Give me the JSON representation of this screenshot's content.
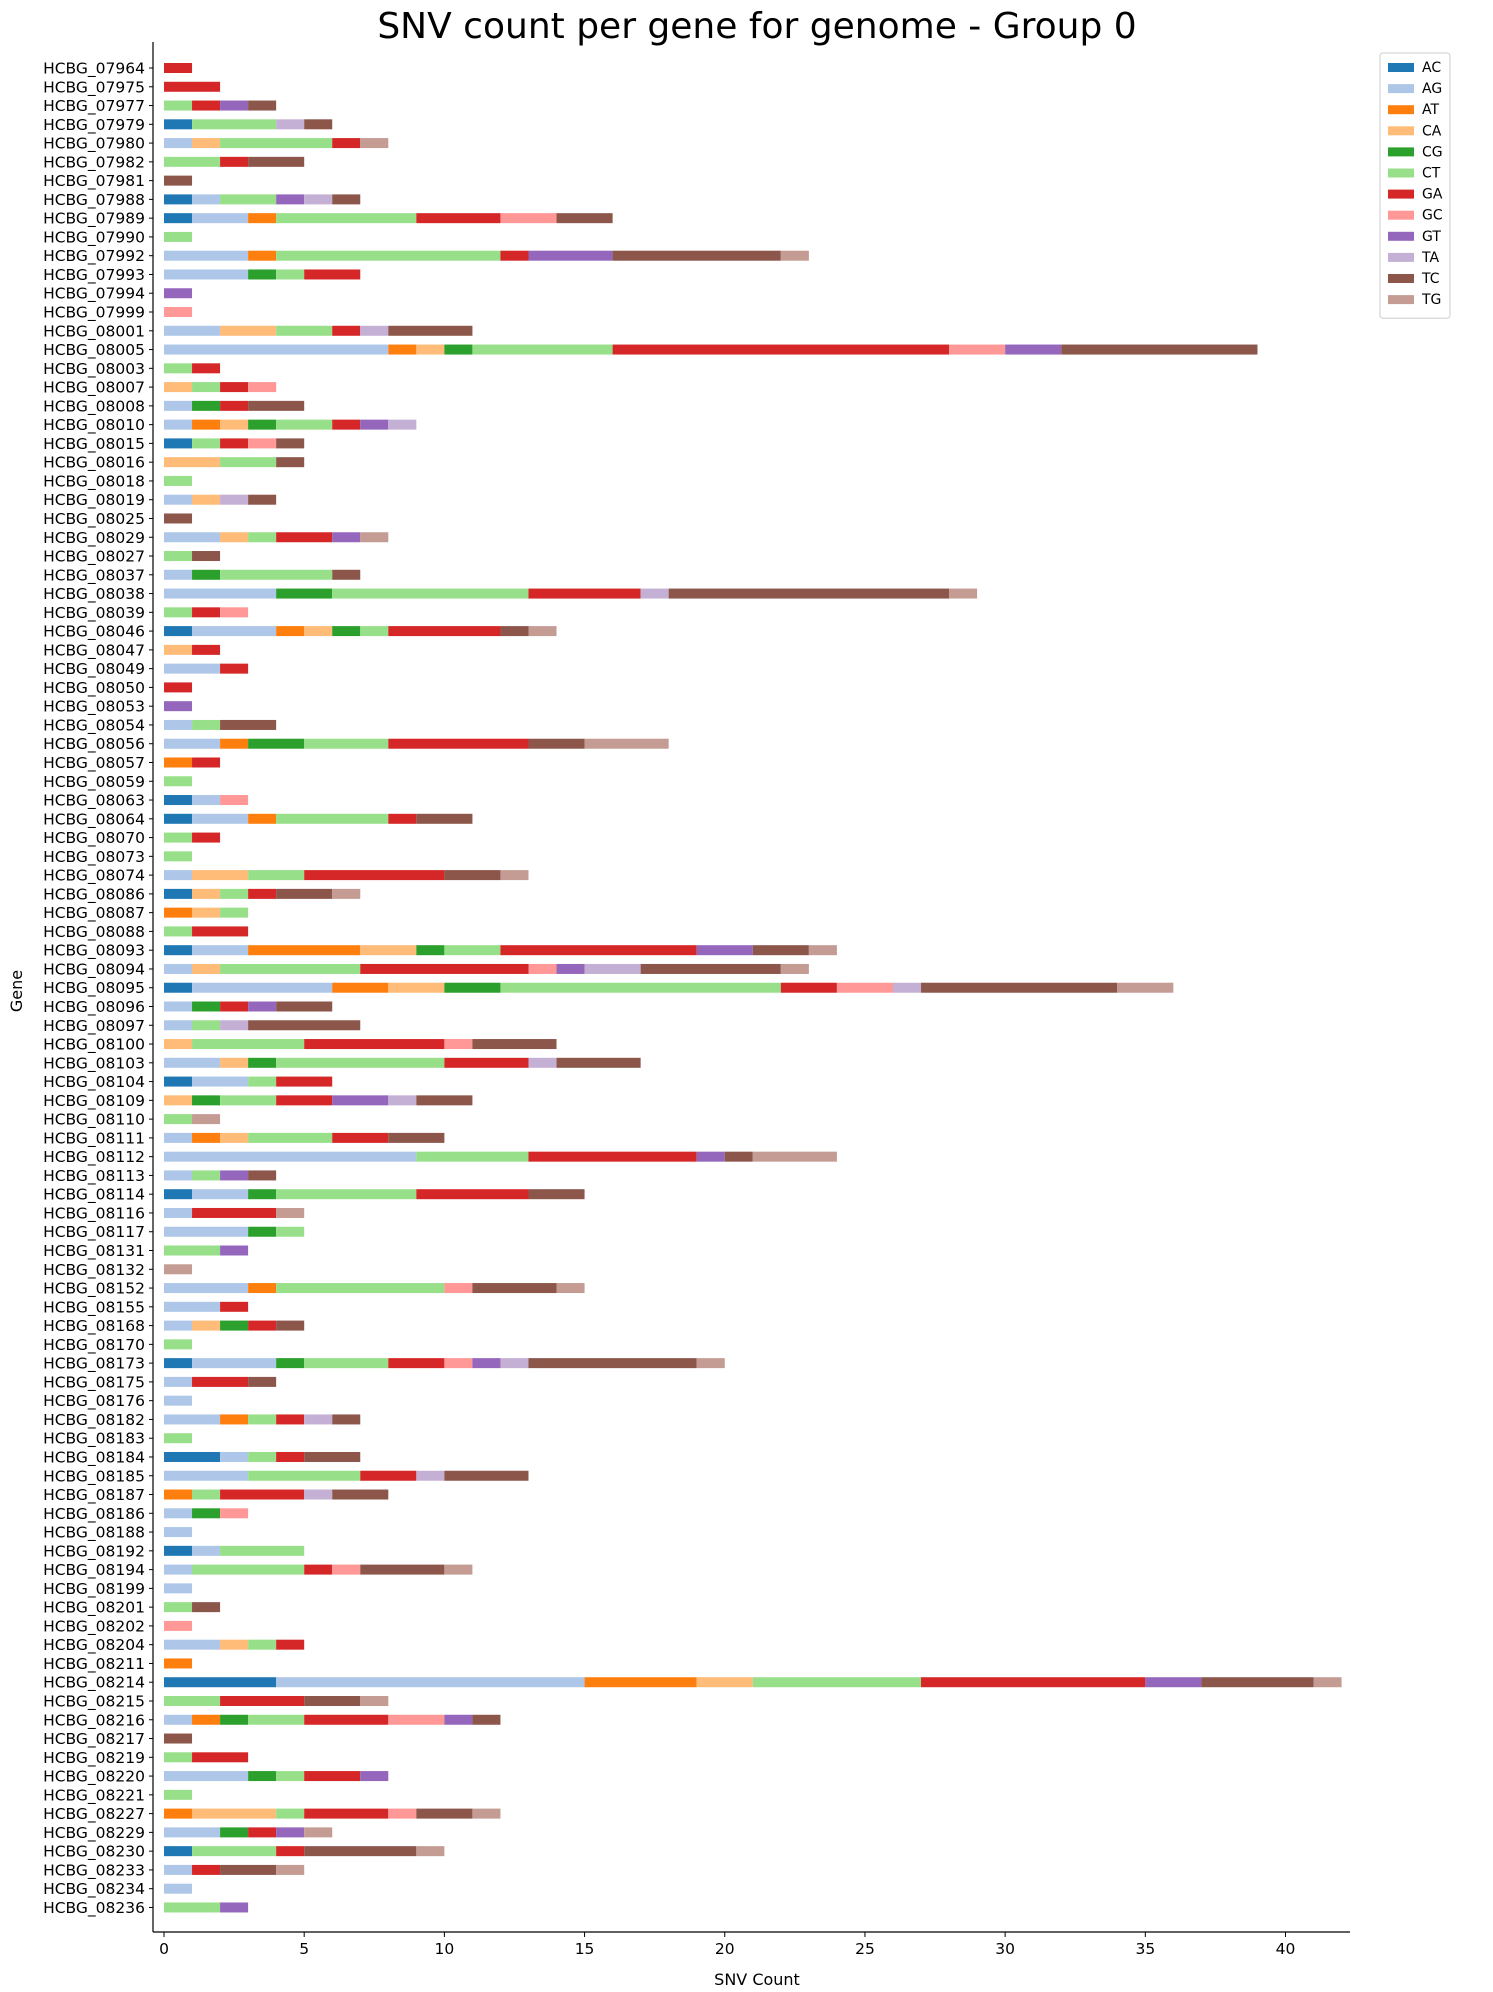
{
  "chart_data": {
    "type": "bar",
    "orientation": "horizontal",
    "stacked": true,
    "title": "SNV count per gene for genome - Group 0",
    "xlabel": "SNV Count",
    "ylabel": "Gene",
    "xlim": [
      0,
      42.3
    ],
    "xticks": [
      0,
      5,
      10,
      15,
      20,
      25,
      30,
      35,
      40
    ],
    "grid": false,
    "legend_position": "top-right outside",
    "legend": [
      {
        "name": "AC",
        "color": "#1f77b4"
      },
      {
        "name": "AG",
        "color": "#aec7e8"
      },
      {
        "name": "AT",
        "color": "#ff7f0e"
      },
      {
        "name": "CA",
        "color": "#ffbb78"
      },
      {
        "name": "CG",
        "color": "#2ca02c"
      },
      {
        "name": "CT",
        "color": "#98df8a"
      },
      {
        "name": "GA",
        "color": "#d62728"
      },
      {
        "name": "GC",
        "color": "#ff9896"
      },
      {
        "name": "GT",
        "color": "#9467bd"
      },
      {
        "name": "TA",
        "color": "#c5b0d5"
      },
      {
        "name": "TC",
        "color": "#8c564b"
      },
      {
        "name": "TG",
        "color": "#c49c94"
      }
    ],
    "genes": [
      {
        "gene": "HCBG_07964",
        "counts": {
          "GA": 1
        }
      },
      {
        "gene": "HCBG_07975",
        "counts": {
          "GA": 2
        }
      },
      {
        "gene": "HCBG_07977",
        "counts": {
          "CT": 1,
          "GA": 1,
          "GT": 1,
          "TC": 1
        }
      },
      {
        "gene": "HCBG_07979",
        "counts": {
          "AC": 1,
          "CT": 3,
          "TA": 1,
          "TC": 1
        }
      },
      {
        "gene": "HCBG_07980",
        "counts": {
          "AG": 1,
          "CA": 1,
          "CT": 4,
          "GA": 1,
          "TG": 1
        }
      },
      {
        "gene": "HCBG_07982",
        "counts": {
          "CT": 2,
          "GA": 1,
          "TC": 2
        }
      },
      {
        "gene": "HCBG_07981",
        "counts": {
          "TC": 1
        }
      },
      {
        "gene": "HCBG_07988",
        "counts": {
          "AC": 1,
          "AG": 1,
          "CT": 2,
          "GT": 1,
          "TA": 1,
          "TC": 1
        }
      },
      {
        "gene": "HCBG_07989",
        "counts": {
          "AC": 1,
          "AG": 2,
          "AT": 1,
          "CT": 5,
          "GA": 3,
          "GC": 2,
          "TC": 2
        }
      },
      {
        "gene": "HCBG_07990",
        "counts": {
          "CT": 1
        }
      },
      {
        "gene": "HCBG_07992",
        "counts": {
          "AG": 3,
          "AT": 1,
          "CT": 8,
          "GA": 1,
          "GT": 3,
          "TC": 6,
          "TG": 1
        }
      },
      {
        "gene": "HCBG_07993",
        "counts": {
          "AG": 3,
          "CG": 1,
          "CT": 1,
          "GA": 2
        }
      },
      {
        "gene": "HCBG_07994",
        "counts": {
          "GT": 1
        }
      },
      {
        "gene": "HCBG_07999",
        "counts": {
          "GC": 1
        }
      },
      {
        "gene": "HCBG_08001",
        "counts": {
          "AG": 2,
          "CA": 2,
          "CT": 2,
          "GA": 1,
          "TA": 1,
          "TC": 3
        }
      },
      {
        "gene": "HCBG_08005",
        "counts": {
          "AG": 8,
          "AT": 1,
          "CA": 1,
          "CG": 1,
          "CT": 5,
          "GA": 12,
          "GC": 2,
          "GT": 2,
          "TC": 7
        }
      },
      {
        "gene": "HCBG_08003",
        "counts": {
          "CT": 1,
          "GA": 1
        }
      },
      {
        "gene": "HCBG_08007",
        "counts": {
          "CA": 1,
          "CT": 1,
          "GA": 1,
          "GC": 1
        }
      },
      {
        "gene": "HCBG_08008",
        "counts": {
          "AG": 1,
          "CG": 1,
          "GA": 1,
          "TC": 2
        }
      },
      {
        "gene": "HCBG_08010",
        "counts": {
          "AG": 1,
          "AT": 1,
          "CA": 1,
          "CG": 1,
          "CT": 2,
          "GA": 1,
          "GT": 1,
          "TA": 1
        }
      },
      {
        "gene": "HCBG_08015",
        "counts": {
          "AC": 1,
          "CT": 1,
          "GA": 1,
          "GC": 1,
          "TC": 1
        }
      },
      {
        "gene": "HCBG_08016",
        "counts": {
          "CA": 2,
          "CT": 2,
          "TC": 1
        }
      },
      {
        "gene": "HCBG_08018",
        "counts": {
          "CT": 1
        }
      },
      {
        "gene": "HCBG_08019",
        "counts": {
          "AG": 1,
          "CA": 1,
          "TA": 1,
          "TC": 1
        }
      },
      {
        "gene": "HCBG_08025",
        "counts": {
          "TC": 1
        }
      },
      {
        "gene": "HCBG_08029",
        "counts": {
          "AG": 2,
          "CA": 1,
          "CT": 1,
          "GA": 2,
          "GT": 1,
          "TG": 1
        }
      },
      {
        "gene": "HCBG_08027",
        "counts": {
          "CT": 1,
          "TC": 1
        }
      },
      {
        "gene": "HCBG_08037",
        "counts": {
          "AG": 1,
          "CG": 1,
          "CT": 4,
          "TC": 1
        }
      },
      {
        "gene": "HCBG_08038",
        "counts": {
          "AG": 4,
          "CG": 2,
          "CT": 7,
          "GA": 4,
          "TA": 1,
          "TC": 10,
          "TG": 1
        }
      },
      {
        "gene": "HCBG_08039",
        "counts": {
          "CT": 1,
          "GA": 1,
          "GC": 1
        }
      },
      {
        "gene": "HCBG_08046",
        "counts": {
          "AC": 1,
          "AG": 3,
          "AT": 1,
          "CA": 1,
          "CG": 1,
          "CT": 1,
          "GA": 4,
          "TC": 1,
          "TG": 1
        }
      },
      {
        "gene": "HCBG_08047",
        "counts": {
          "CA": 1,
          "GA": 1
        }
      },
      {
        "gene": "HCBG_08049",
        "counts": {
          "AG": 2,
          "GA": 1
        }
      },
      {
        "gene": "HCBG_08050",
        "counts": {
          "GA": 1
        }
      },
      {
        "gene": "HCBG_08053",
        "counts": {
          "GT": 1
        }
      },
      {
        "gene": "HCBG_08054",
        "counts": {
          "AG": 1,
          "CT": 1,
          "TC": 2
        }
      },
      {
        "gene": "HCBG_08056",
        "counts": {
          "AG": 2,
          "AT": 1,
          "CG": 2,
          "CT": 3,
          "GA": 5,
          "TC": 2,
          "TG": 3
        }
      },
      {
        "gene": "HCBG_08057",
        "counts": {
          "AT": 1,
          "GA": 1
        }
      },
      {
        "gene": "HCBG_08059",
        "counts": {
          "CT": 1
        }
      },
      {
        "gene": "HCBG_08063",
        "counts": {
          "AC": 1,
          "AG": 1,
          "GC": 1
        }
      },
      {
        "gene": "HCBG_08064",
        "counts": {
          "AC": 1,
          "AG": 2,
          "AT": 1,
          "CT": 4,
          "GA": 1,
          "TC": 2
        }
      },
      {
        "gene": "HCBG_08070",
        "counts": {
          "CT": 1,
          "GA": 1
        }
      },
      {
        "gene": "HCBG_08073",
        "counts": {
          "CT": 1
        }
      },
      {
        "gene": "HCBG_08074",
        "counts": {
          "AG": 1,
          "CA": 2,
          "CT": 2,
          "GA": 5,
          "TC": 2,
          "TG": 1
        }
      },
      {
        "gene": "HCBG_08086",
        "counts": {
          "AC": 1,
          "CA": 1,
          "CT": 1,
          "GA": 1,
          "TC": 2,
          "TG": 1
        }
      },
      {
        "gene": "HCBG_08087",
        "counts": {
          "AT": 1,
          "CA": 1,
          "CT": 1
        }
      },
      {
        "gene": "HCBG_08088",
        "counts": {
          "CT": 1,
          "GA": 2
        }
      },
      {
        "gene": "HCBG_08093",
        "counts": {
          "AC": 1,
          "AG": 2,
          "AT": 4,
          "CA": 2,
          "CG": 1,
          "CT": 2,
          "GA": 7,
          "GT": 2,
          "TC": 2,
          "TG": 1
        }
      },
      {
        "gene": "HCBG_08094",
        "counts": {
          "AG": 1,
          "CA": 1,
          "CT": 5,
          "GA": 6,
          "GC": 1,
          "GT": 1,
          "TA": 2,
          "TC": 5,
          "TG": 1
        }
      },
      {
        "gene": "HCBG_08095",
        "counts": {
          "AC": 1,
          "AG": 5,
          "AT": 2,
          "CA": 2,
          "CG": 2,
          "CT": 10,
          "GA": 2,
          "GC": 2,
          "TA": 1,
          "TC": 7,
          "TG": 2
        }
      },
      {
        "gene": "HCBG_08096",
        "counts": {
          "AG": 1,
          "CG": 1,
          "GA": 1,
          "GT": 1,
          "TC": 2
        }
      },
      {
        "gene": "HCBG_08097",
        "counts": {
          "AG": 1,
          "CT": 1,
          "TA": 1,
          "TC": 4
        }
      },
      {
        "gene": "HCBG_08100",
        "counts": {
          "CA": 1,
          "CT": 4,
          "GA": 5,
          "GC": 1,
          "TC": 3
        }
      },
      {
        "gene": "HCBG_08103",
        "counts": {
          "AG": 2,
          "CA": 1,
          "CG": 1,
          "CT": 6,
          "GA": 3,
          "TA": 1,
          "TC": 3
        }
      },
      {
        "gene": "HCBG_08104",
        "counts": {
          "AC": 1,
          "AG": 2,
          "CT": 1,
          "GA": 2
        }
      },
      {
        "gene": "HCBG_08109",
        "counts": {
          "CA": 1,
          "CG": 1,
          "CT": 2,
          "GA": 2,
          "GT": 2,
          "TA": 1,
          "TC": 2
        }
      },
      {
        "gene": "HCBG_08110",
        "counts": {
          "CT": 1,
          "TG": 1
        }
      },
      {
        "gene": "HCBG_08111",
        "counts": {
          "AG": 1,
          "AT": 1,
          "CA": 1,
          "CT": 3,
          "GA": 2,
          "TC": 2
        }
      },
      {
        "gene": "HCBG_08112",
        "counts": {
          "AG": 9,
          "CT": 4,
          "GA": 6,
          "GT": 1,
          "TC": 1,
          "TG": 3
        }
      },
      {
        "gene": "HCBG_08113",
        "counts": {
          "AG": 1,
          "CT": 1,
          "GT": 1,
          "TC": 1
        }
      },
      {
        "gene": "HCBG_08114",
        "counts": {
          "AC": 1,
          "AG": 2,
          "CG": 1,
          "CT": 5,
          "GA": 4,
          "TC": 2
        }
      },
      {
        "gene": "HCBG_08116",
        "counts": {
          "AG": 1,
          "GA": 3,
          "TG": 1
        }
      },
      {
        "gene": "HCBG_08117",
        "counts": {
          "AG": 3,
          "CG": 1,
          "CT": 1
        }
      },
      {
        "gene": "HCBG_08131",
        "counts": {
          "CT": 2,
          "GT": 1
        }
      },
      {
        "gene": "HCBG_08132",
        "counts": {
          "TG": 1
        }
      },
      {
        "gene": "HCBG_08152",
        "counts": {
          "AG": 3,
          "AT": 1,
          "CT": 6,
          "GC": 1,
          "TC": 3,
          "TG": 1
        }
      },
      {
        "gene": "HCBG_08155",
        "counts": {
          "AG": 2,
          "GA": 1
        }
      },
      {
        "gene": "HCBG_08168",
        "counts": {
          "AG": 1,
          "CA": 1,
          "CG": 1,
          "GA": 1,
          "TC": 1
        }
      },
      {
        "gene": "HCBG_08170",
        "counts": {
          "CT": 1
        }
      },
      {
        "gene": "HCBG_08173",
        "counts": {
          "AC": 1,
          "AG": 3,
          "CG": 1,
          "CT": 3,
          "GA": 2,
          "GC": 1,
          "GT": 1,
          "TA": 1,
          "TC": 6,
          "TG": 1
        }
      },
      {
        "gene": "HCBG_08175",
        "counts": {
          "AG": 1,
          "GA": 2,
          "TC": 1
        }
      },
      {
        "gene": "HCBG_08176",
        "counts": {
          "AG": 1
        }
      },
      {
        "gene": "HCBG_08182",
        "counts": {
          "AG": 2,
          "AT": 1,
          "CT": 1,
          "GA": 1,
          "TA": 1,
          "TC": 1
        }
      },
      {
        "gene": "HCBG_08183",
        "counts": {
          "CT": 1
        }
      },
      {
        "gene": "HCBG_08184",
        "counts": {
          "AC": 2,
          "AG": 1,
          "CT": 1,
          "GA": 1,
          "TC": 2
        }
      },
      {
        "gene": "HCBG_08185",
        "counts": {
          "AG": 3,
          "CT": 4,
          "GA": 2,
          "TA": 1,
          "TC": 3
        }
      },
      {
        "gene": "HCBG_08187",
        "counts": {
          "AT": 1,
          "CT": 1,
          "GA": 3,
          "TA": 1,
          "TC": 2
        }
      },
      {
        "gene": "HCBG_08186",
        "counts": {
          "AG": 1,
          "CG": 1,
          "GC": 1
        }
      },
      {
        "gene": "HCBG_08188",
        "counts": {
          "AG": 1
        }
      },
      {
        "gene": "HCBG_08192",
        "counts": {
          "AC": 1,
          "AG": 1,
          "CT": 3
        }
      },
      {
        "gene": "HCBG_08194",
        "counts": {
          "AG": 1,
          "CT": 4,
          "GA": 1,
          "GC": 1,
          "TC": 3,
          "TG": 1
        }
      },
      {
        "gene": "HCBG_08199",
        "counts": {
          "AG": 1
        }
      },
      {
        "gene": "HCBG_08201",
        "counts": {
          "CT": 1,
          "TC": 1
        }
      },
      {
        "gene": "HCBG_08202",
        "counts": {
          "GC": 1
        }
      },
      {
        "gene": "HCBG_08204",
        "counts": {
          "AG": 2,
          "CA": 1,
          "CT": 1,
          "GA": 1
        }
      },
      {
        "gene": "HCBG_08211",
        "counts": {
          "AT": 1
        }
      },
      {
        "gene": "HCBG_08214",
        "counts": {
          "AC": 4,
          "AG": 11,
          "AT": 4,
          "CA": 2,
          "CT": 6,
          "GA": 8,
          "GT": 2,
          "TC": 4,
          "TG": 1
        }
      },
      {
        "gene": "HCBG_08215",
        "counts": {
          "CT": 2,
          "GA": 3,
          "TC": 2,
          "TG": 1
        }
      },
      {
        "gene": "HCBG_08216",
        "counts": {
          "AG": 1,
          "AT": 1,
          "CG": 1,
          "CT": 2,
          "GA": 3,
          "GC": 2,
          "GT": 1,
          "TC": 1
        }
      },
      {
        "gene": "HCBG_08217",
        "counts": {
          "TC": 1
        }
      },
      {
        "gene": "HCBG_08219",
        "counts": {
          "CT": 1,
          "GA": 2
        }
      },
      {
        "gene": "HCBG_08220",
        "counts": {
          "AG": 3,
          "CG": 1,
          "CT": 1,
          "GA": 2,
          "GT": 1
        }
      },
      {
        "gene": "HCBG_08221",
        "counts": {
          "CT": 1
        }
      },
      {
        "gene": "HCBG_08227",
        "counts": {
          "AT": 1,
          "CA": 3,
          "CT": 1,
          "GA": 3,
          "GC": 1,
          "TC": 2,
          "TG": 1
        }
      },
      {
        "gene": "HCBG_08229",
        "counts": {
          "AG": 2,
          "CG": 1,
          "GA": 1,
          "GT": 1,
          "TG": 1
        }
      },
      {
        "gene": "HCBG_08230",
        "counts": {
          "AC": 1,
          "CT": 3,
          "GA": 1,
          "TC": 4,
          "TG": 1
        }
      },
      {
        "gene": "HCBG_08233",
        "counts": {
          "AG": 1,
          "GA": 1,
          "TC": 2,
          "TG": 1
        }
      },
      {
        "gene": "HCBG_08234",
        "counts": {
          "AG": 1
        }
      },
      {
        "gene": "HCBG_08236",
        "counts": {
          "CT": 2,
          "GT": 1
        }
      }
    ]
  }
}
